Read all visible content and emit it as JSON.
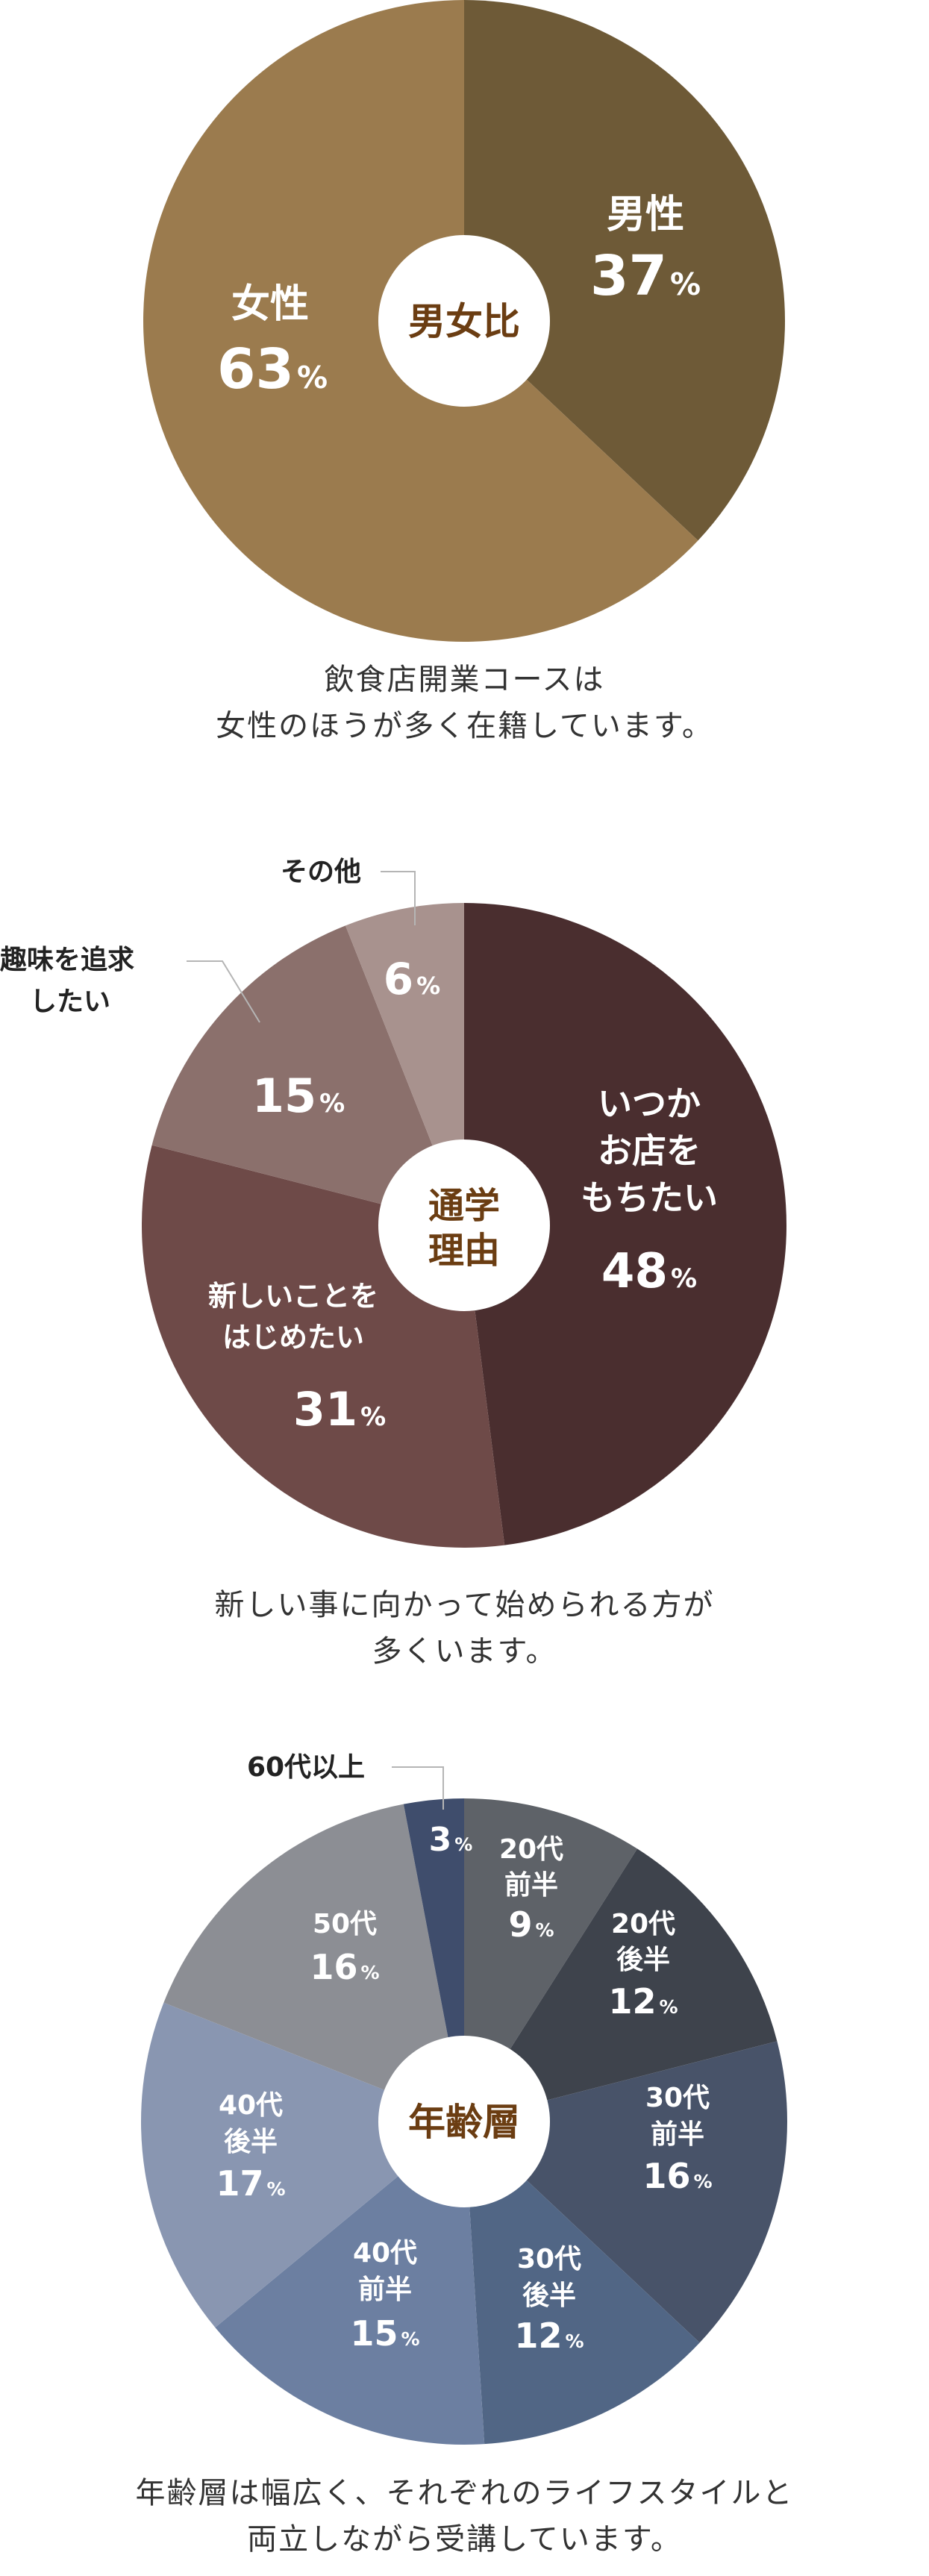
{
  "charts": {
    "gender": {
      "center_label": "男女比",
      "caption_lines": [
        "飲食店開業コースは",
        "女性のほうが多く在籍しています。"
      ]
    },
    "reason": {
      "center_label_lines": [
        "通学",
        "理由"
      ],
      "caption_lines": [
        "新しい事に向かって始められる方が",
        "多くいます。"
      ]
    },
    "age": {
      "center_label": "年齢層",
      "caption_lines": [
        "年齢層は幅広く、それぞれのライフスタイルと",
        "両立しながら受講しています。"
      ]
    }
  },
  "chart_data": [
    {
      "type": "pie",
      "slices": [
        {
          "label": "男性",
          "value": 37,
          "color": "#6e5a37"
        },
        {
          "label": "女性",
          "value": 63,
          "color": "#9b7b4e"
        }
      ],
      "unit": "%"
    },
    {
      "type": "pie",
      "slices": [
        {
          "label_lines": [
            "いつか",
            "お店を",
            "もちたい"
          ],
          "value": 48,
          "color": "#4a2e2f"
        },
        {
          "label_lines": [
            "新しいことを",
            "はじめたい"
          ],
          "value": 31,
          "color": "#6e4a48"
        },
        {
          "label_lines": [
            "趣味を追求",
            "したい"
          ],
          "value": 15,
          "color": "#8b706c"
        },
        {
          "label_lines": [
            "その他"
          ],
          "value": 6,
          "color": "#a8928e"
        }
      ],
      "unit": "%"
    },
    {
      "type": "pie",
      "slices": [
        {
          "label_lines": [
            "20代",
            "前半"
          ],
          "value": 9,
          "color": "#5e6268"
        },
        {
          "label_lines": [
            "20代",
            "後半"
          ],
          "value": 12,
          "color": "#3e434c"
        },
        {
          "label_lines": [
            "30代",
            "前半"
          ],
          "value": 16,
          "color": "#485369"
        },
        {
          "label_lines": [
            "30代",
            "後半"
          ],
          "value": 12,
          "color": "#516685"
        },
        {
          "label_lines": [
            "40代",
            "前半"
          ],
          "value": 15,
          "color": "#6c7fa1"
        },
        {
          "label_lines": [
            "40代",
            "後半"
          ],
          "value": 17,
          "color": "#8996b1"
        },
        {
          "label_lines": [
            "50代"
          ],
          "value": 16,
          "color": "#8c8e94"
        },
        {
          "label_lines": [
            "60代以上"
          ],
          "value": 3,
          "color": "#3f4d6c"
        }
      ],
      "unit": "%"
    }
  ]
}
